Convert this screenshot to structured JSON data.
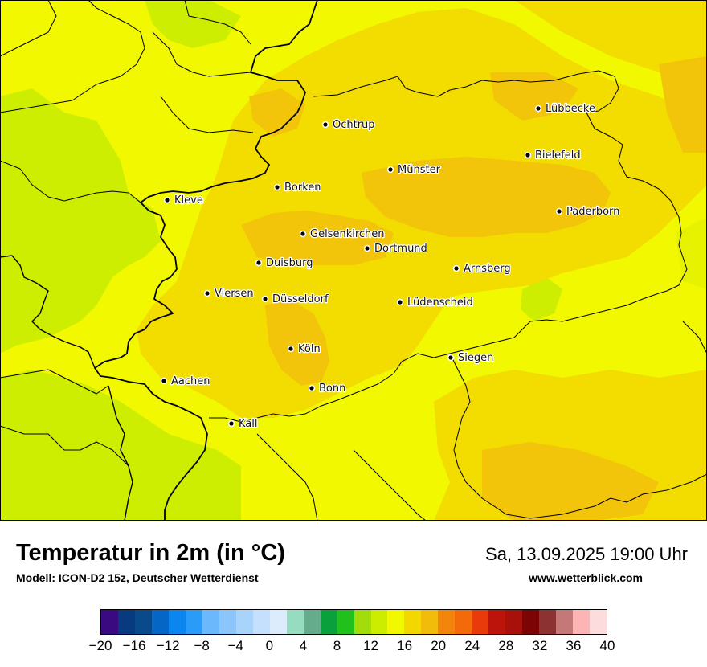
{
  "map": {
    "cities": [
      {
        "name": "Ochtrup"
      },
      {
        "name": "Lübbecke"
      },
      {
        "name": "Bielefeld"
      },
      {
        "name": "Münster"
      },
      {
        "name": "Borken"
      },
      {
        "name": "Kleve"
      },
      {
        "name": "Paderborn"
      },
      {
        "name": "Gelsenkirchen"
      },
      {
        "name": "Dortmund"
      },
      {
        "name": "Duisburg"
      },
      {
        "name": "Arnsberg"
      },
      {
        "name": "Viersen"
      },
      {
        "name": "Düsseldorf"
      },
      {
        "name": "Lüdenscheid"
      },
      {
        "name": "Köln"
      },
      {
        "name": "Siegen"
      },
      {
        "name": "Aachen"
      },
      {
        "name": "Bonn"
      },
      {
        "name": "Kall"
      }
    ],
    "colors": {
      "t10": "#cdee00",
      "t12": "#e6f200",
      "t14": "#f2f800",
      "t16": "#f3dc00",
      "t18": "#f2c40a"
    }
  },
  "footer": {
    "title": "Temperatur in 2m (in °C)",
    "model": "Modell: ICON-D2 15z, Deutscher Wetterdienst",
    "datetime": "Sa, 13.09.2025 19:00 Uhr",
    "website": "www.wetterblick.com"
  },
  "legend": {
    "ticks": [
      "−20",
      "−16",
      "−12",
      "−8",
      "−4",
      "0",
      "4",
      "8",
      "12",
      "16",
      "20",
      "24",
      "28",
      "32",
      "36",
      "40"
    ],
    "min": -20,
    "max": 40,
    "colors": [
      "#3a0a80",
      "#083a80",
      "#084a8a",
      "#0566c6",
      "#0a86ee",
      "#2a9cf8",
      "#6cb8fc",
      "#8ac6fc",
      "#a8d4fc",
      "#c4e0fc",
      "#dcecfc",
      "#96dcc0",
      "#64ac8c",
      "#0aa03c",
      "#22c01a",
      "#a2dc0a",
      "#ccec00",
      "#f2f800",
      "#f2d800",
      "#f2bc0a",
      "#f2860a",
      "#f26a0a",
      "#e83a0a",
      "#bc140a",
      "#a8100a",
      "#7c0404",
      "#8c3232",
      "#c47878",
      "#fcb4b4",
      "#fcdcdc"
    ]
  }
}
